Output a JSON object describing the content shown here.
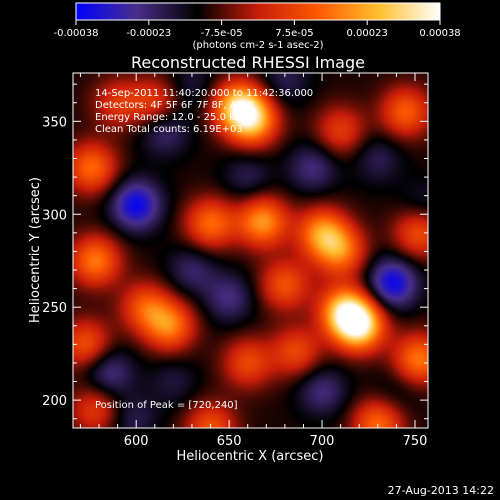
{
  "chart_data": {
    "type": "heatmap",
    "title": "Reconstructed RHESSI Image",
    "xlabel": "Heliocentric X (arcsec)",
    "ylabel": "Heliocentric Y (arcsec)",
    "xlim": [
      566,
      757
    ],
    "ylim": [
      185,
      376
    ],
    "xticks": [
      600,
      650,
      700,
      750
    ],
    "yticks": [
      200,
      250,
      300,
      350
    ],
    "colorbar": {
      "ticks": [
        "-0.00038",
        "-0.00023",
        "-7.5e-05",
        "7.5e-05",
        "0.00023",
        "0.00038"
      ],
      "range": [
        -0.00038,
        0.00038
      ],
      "unit_label": "(photons cm-2 s-1 asec-2)",
      "colors": [
        "#0000ff",
        "#4a2f8a",
        "#000000",
        "#c81c0a",
        "#ff5a00",
        "#ffc030",
        "#ffffff"
      ]
    },
    "annotations": [
      "14-Sep-2011 11:40:20.000 to 11:42:36.000",
      "Detectors: 4F 5F 6F 7F 8F, Att 0",
      "Energy Range: 12.0 - 25.0 keV",
      "Clean     Total counts: 6.19E+03"
    ],
    "peak_text": "Position of Peak = [720,240]",
    "peak": [
      720,
      240
    ],
    "sources": [
      {
        "x": 720,
        "y": 240,
        "v": 0.00038
      },
      {
        "x": 712,
        "y": 248,
        "v": 0.0003
      },
      {
        "x": 655,
        "y": 358,
        "v": 0.00032
      },
      {
        "x": 663,
        "y": 350,
        "v": 0.00026
      },
      {
        "x": 668,
        "y": 296,
        "v": 0.00026
      },
      {
        "x": 700,
        "y": 290,
        "v": 0.00024
      },
      {
        "x": 710,
        "y": 280,
        "v": 0.0002
      },
      {
        "x": 640,
        "y": 295,
        "v": 0.0002
      },
      {
        "x": 618,
        "y": 240,
        "v": 0.00022
      },
      {
        "x": 605,
        "y": 250,
        "v": 0.00016
      },
      {
        "x": 578,
        "y": 275,
        "v": 0.00022
      },
      {
        "x": 576,
        "y": 325,
        "v": 0.0002
      },
      {
        "x": 573,
        "y": 230,
        "v": 0.00016
      },
      {
        "x": 680,
        "y": 262,
        "v": 0.00016
      },
      {
        "x": 686,
        "y": 226,
        "v": 0.00014
      },
      {
        "x": 660,
        "y": 220,
        "v": 0.00014
      },
      {
        "x": 640,
        "y": 185,
        "v": 0.00016
      },
      {
        "x": 730,
        "y": 187,
        "v": 0.0002
      },
      {
        "x": 752,
        "y": 222,
        "v": 0.00022
      },
      {
        "x": 752,
        "y": 290,
        "v": 0.00016
      },
      {
        "x": 745,
        "y": 355,
        "v": 0.00018
      },
      {
        "x": 710,
        "y": 345,
        "v": 0.00012
      },
      {
        "x": 610,
        "y": 360,
        "v": 0.00012
      },
      {
        "x": 590,
        "y": 360,
        "v": 0.0001
      },
      {
        "x": 578,
        "y": 195,
        "v": 0.00012
      },
      {
        "x": 600,
        "y": 305,
        "v": -0.0003
      },
      {
        "x": 615,
        "y": 345,
        "v": -0.00018
      },
      {
        "x": 630,
        "y": 270,
        "v": -0.00016
      },
      {
        "x": 585,
        "y": 215,
        "v": -0.0002
      },
      {
        "x": 598,
        "y": 190,
        "v": -0.00014
      },
      {
        "x": 650,
        "y": 255,
        "v": -0.00018
      },
      {
        "x": 660,
        "y": 320,
        "v": -0.00014
      },
      {
        "x": 695,
        "y": 325,
        "v": -0.00018
      },
      {
        "x": 730,
        "y": 330,
        "v": -0.00014
      },
      {
        "x": 738,
        "y": 263,
        "v": -0.0003
      },
      {
        "x": 700,
        "y": 205,
        "v": -0.00018
      },
      {
        "x": 755,
        "y": 305,
        "v": -0.00012
      },
      {
        "x": 740,
        "y": 205,
        "v": -0.0001
      },
      {
        "x": 630,
        "y": 370,
        "v": -0.00012
      },
      {
        "x": 680,
        "y": 372,
        "v": -0.00014
      },
      {
        "x": 620,
        "y": 210,
        "v": -0.00012
      }
    ]
  },
  "footer": {
    "date_stamp": "27-Aug-2013 14:22"
  }
}
